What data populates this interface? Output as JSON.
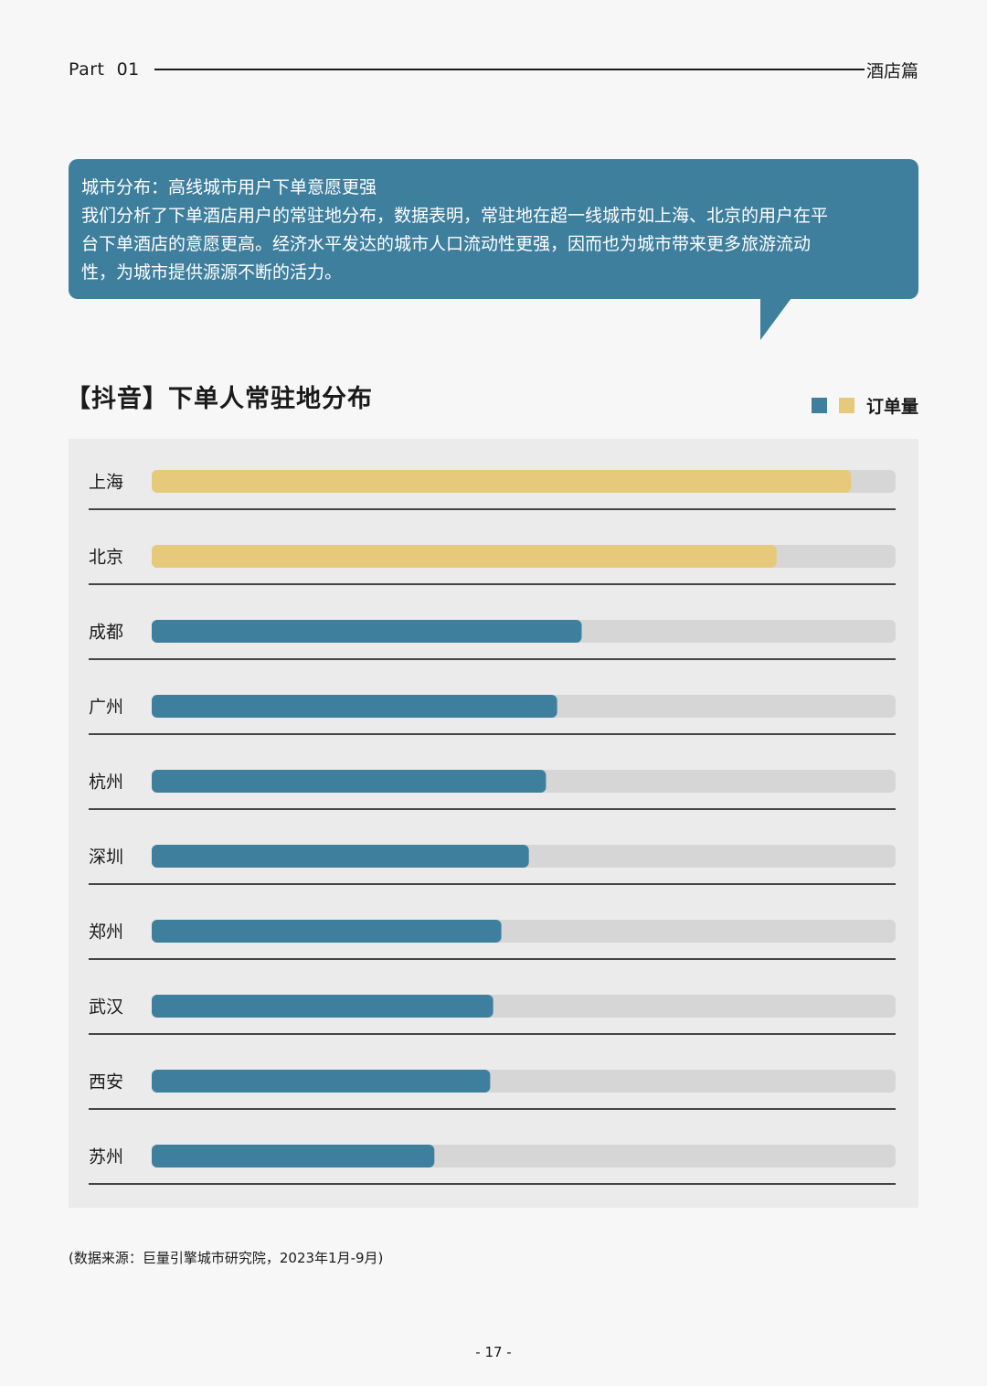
{
  "header": {
    "part": "Part  01",
    "section": "酒店篇"
  },
  "callout": {
    "title": "城市分布：高线城市用户下单意愿更强",
    "body_lines": [
      "我们分析了下单酒店用户的常驻地分布，数据表明，常驻地在超一线城市如上海、北京的用户在平",
      "台下单酒店的意愿更高。经济水平发达的城市人口流动性更强，因而也为城市带来更多旅游流动",
      "性，为城市提供源源不断的活力。"
    ],
    "color": "#3f7f9e"
  },
  "legend": {
    "label": "订单量",
    "colors": [
      "#3f7f9e",
      "#e7c97c"
    ]
  },
  "chart_data": {
    "type": "bar",
    "orientation": "horizontal",
    "title": "【抖音】下单人常驻地分布",
    "categories": [
      "上海",
      "北京",
      "成都",
      "广州",
      "杭州",
      "深圳",
      "郑州",
      "武汉",
      "西安",
      "苏州"
    ],
    "series": [
      {
        "name": "订单量",
        "values": [
          94,
          84,
          57.8,
          54.5,
          53,
          50.7,
          47,
          45.9,
          45.5,
          38
        ]
      }
    ],
    "highlight": [
      true,
      true,
      false,
      false,
      false,
      false,
      false,
      false,
      false,
      false
    ],
    "xlim": [
      0,
      100
    ],
    "colors": {
      "highlight": "#e7c97c",
      "normal": "#3f7f9e",
      "track": "#d6d6d6"
    },
    "grid": false,
    "legend_position": "top-right"
  },
  "footer": {
    "source": "(数据来源：巨量引擎城市研究院，2023年1月-9月)",
    "page": "- 17 -"
  }
}
